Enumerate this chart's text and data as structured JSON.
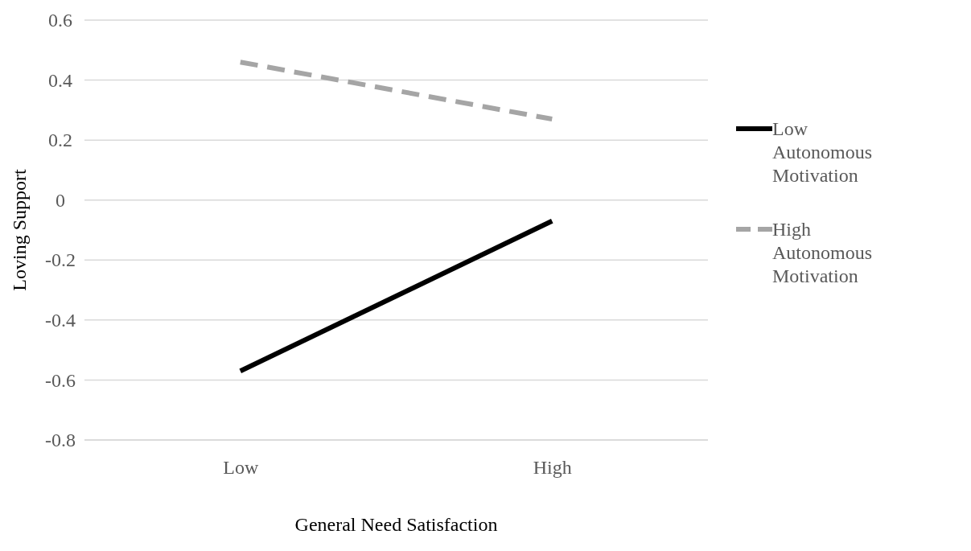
{
  "chart_data": {
    "type": "line",
    "xlabel": "General Need Satisfaction",
    "ylabel": "Loving Support",
    "categories": [
      "Low",
      "High"
    ],
    "series": [
      {
        "name": "Low Autonomous Motivation",
        "color": "#000000",
        "line_style": "solid",
        "values": [
          -0.57,
          -0.07
        ]
      },
      {
        "name": "High Autonomous Motivation",
        "color": "#a5a5a5",
        "line_style": "dashed",
        "values": [
          0.46,
          0.27
        ]
      }
    ],
    "ylim": [
      -0.8,
      0.6
    ],
    "yticks": [
      -0.8,
      -0.6,
      -0.4,
      -0.2,
      0,
      0.2,
      0.4,
      0.6
    ],
    "grid": "y",
    "legend": "right",
    "marker": "none"
  }
}
